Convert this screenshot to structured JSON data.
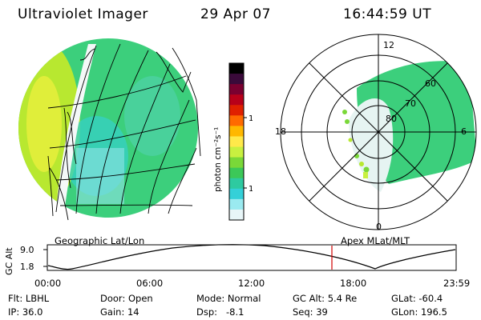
{
  "header": {
    "instrument": "Ultraviolet Imager",
    "date": "29 Apr 07",
    "time": "16:44:59 UT"
  },
  "colorbar": {
    "label": "photon cm⁻²s⁻¹",
    "ticks": [
      "100",
      "10"
    ],
    "scale": "log",
    "colors": [
      "#000000",
      "#3a0a3a",
      "#7a0030",
      "#b8001a",
      "#e02000",
      "#ff6a00",
      "#ffb800",
      "#ffe94a",
      "#c8f040",
      "#7ad838",
      "#3cc858",
      "#2ecaa0",
      "#34d0d8",
      "#9aeaf0",
      "#e8f6f8"
    ]
  },
  "polar_plot": {
    "hour_labels": [
      "12",
      "18",
      "6",
      "0"
    ],
    "lat_labels": [
      "60",
      "70",
      "80"
    ]
  },
  "projection_labels": {
    "left": "Geographic Lat/Lon",
    "right": "Apex MLat/MLT"
  },
  "orbit_plot": {
    "ylabel": "GC Alt",
    "y_ticks": [
      "9.0",
      "1.8"
    ],
    "x_ticks": [
      "00:00",
      "06:00",
      "12:00",
      "18:00",
      "23:59"
    ],
    "current_time_marker": "16:44:59"
  },
  "info": {
    "flt": "Flt: LBHL",
    "door": "Door: Open",
    "mode": "Mode: Normal",
    "gc_alt": "GC Alt: 5.4 Re",
    "glat": "GLat: -60.4",
    "ip": "IP: 36.0",
    "gain": "Gain: 14",
    "dsp": "Dsp:   -8.1",
    "seq": "Seq: 39",
    "glon": "GLon: 196.5"
  }
}
